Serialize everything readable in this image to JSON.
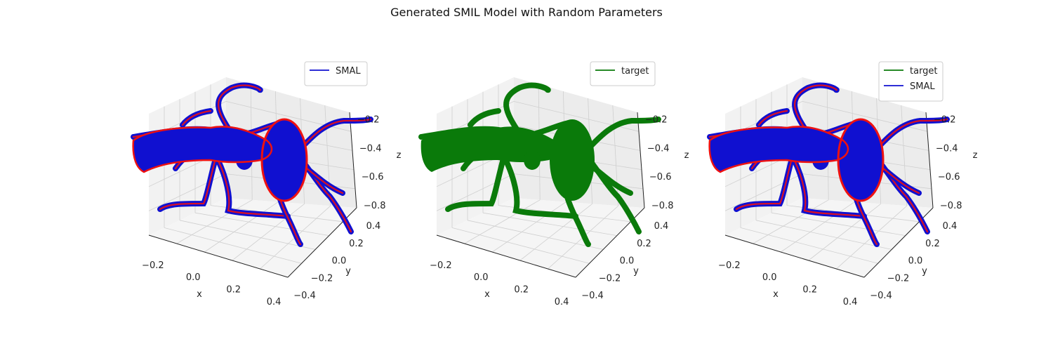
{
  "figure": {
    "title": "Generated SMIL Model with Random Parameters"
  },
  "colors": {
    "smal": "#1010d0",
    "target": "#0a7a0a",
    "highlight": "#ee1111",
    "pane": "#f2f2f2",
    "grid": "#cfcfcf"
  },
  "chart_data": [
    {
      "type": "scatter",
      "panel": "left",
      "series": [
        {
          "name": "SMAL",
          "color": "#1010d0"
        }
      ],
      "xlabel": "x",
      "ylabel": "y",
      "zlabel": "z",
      "x_ticks": [
        "−0.2",
        "0.0",
        "0.2",
        "0.4"
      ],
      "y_ticks": [
        "0.4",
        "0.2",
        "0.0",
        "−0.2",
        "−0.4"
      ],
      "z_ticks": [
        "−0.2",
        "−0.4",
        "−0.6",
        "−0.8"
      ],
      "legend": "top-right"
    },
    {
      "type": "scatter",
      "panel": "middle",
      "series": [
        {
          "name": "target",
          "color": "#0a7a0a"
        }
      ],
      "xlabel": "x",
      "ylabel": "y",
      "zlabel": "z",
      "x_ticks": [
        "−0.2",
        "0.0",
        "0.2",
        "0.4"
      ],
      "y_ticks": [
        "0.4",
        "0.2",
        "0.0",
        "−0.2",
        "−0.4"
      ],
      "z_ticks": [
        "−0.2",
        "−0.4",
        "−0.6",
        "−0.8"
      ],
      "legend": "top-right"
    },
    {
      "type": "scatter",
      "panel": "right",
      "series": [
        {
          "name": "target",
          "color": "#0a7a0a"
        },
        {
          "name": "SMAL",
          "color": "#1010d0"
        }
      ],
      "xlabel": "x",
      "ylabel": "y",
      "zlabel": "z",
      "x_ticks": [
        "−0.2",
        "0.0",
        "0.2",
        "0.4"
      ],
      "y_ticks": [
        "0.4",
        "0.2",
        "0.0",
        "−0.2",
        "−0.4"
      ],
      "z_ticks": [
        "−0.2",
        "−0.4",
        "−0.6",
        "−0.8"
      ],
      "legend": "top-right"
    }
  ]
}
